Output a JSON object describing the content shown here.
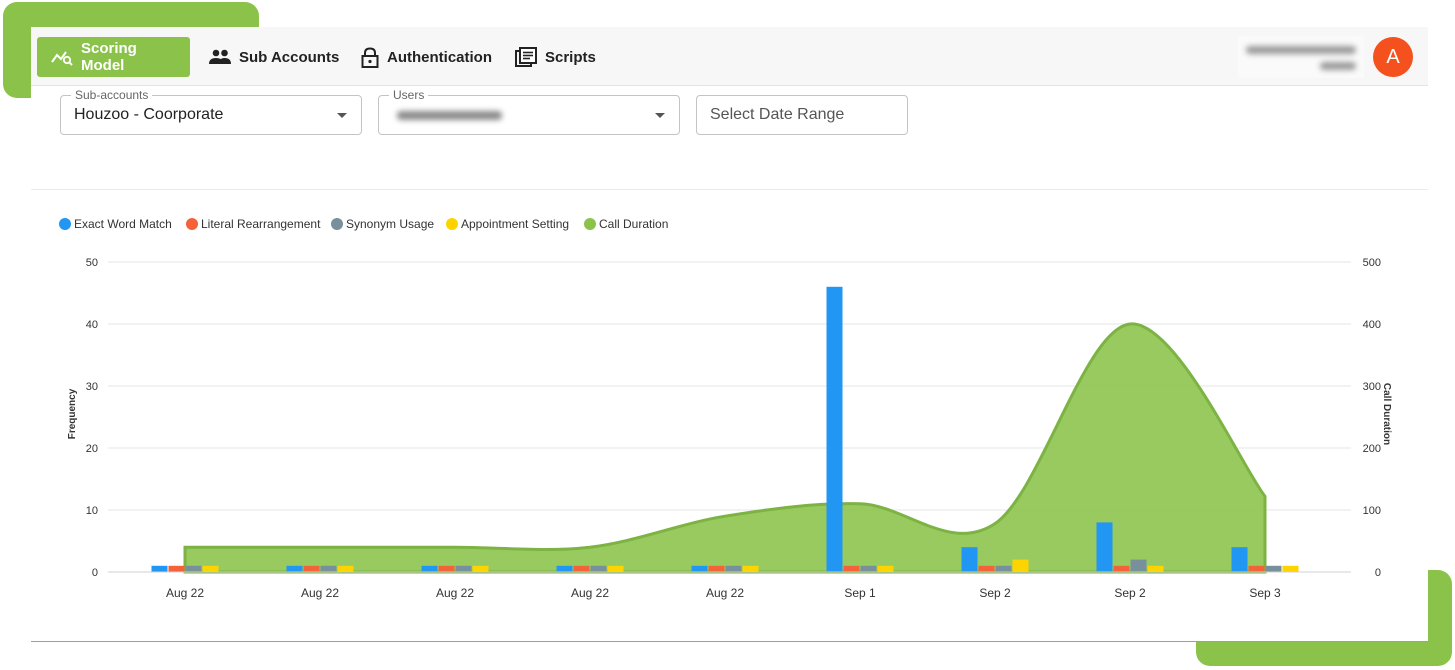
{
  "nav": {
    "tabs": [
      {
        "label": "Scoring Model",
        "icon": "chart-search-icon",
        "active": true
      },
      {
        "label": "Sub Accounts",
        "icon": "users-icon",
        "active": false
      },
      {
        "label": "Authentication",
        "icon": "lock-icon",
        "active": false
      },
      {
        "label": "Scripts",
        "icon": "script-icon",
        "active": false
      }
    ],
    "avatar_letter": "A"
  },
  "filters": {
    "subaccounts": {
      "label": "Sub-accounts",
      "value": "Houzoo - Coorporate"
    },
    "users": {
      "label": "Users"
    },
    "date_range": {
      "placeholder": "Select Date Range"
    }
  },
  "colors": {
    "accent": "#8bc34a",
    "avatar": "#f4511e",
    "exact": "#2196f3",
    "literal": "#f4623a",
    "synonym": "#78909c",
    "appointment": "#fdd400",
    "duration": "#8bc34a"
  },
  "chart_data": {
    "type": "bar",
    "categories": [
      "Aug 22",
      "Aug 22",
      "Aug 22",
      "Aug 22",
      "Aug 22",
      "Sep 1",
      "Sep 2",
      "Sep 2",
      "Sep 3"
    ],
    "series": [
      {
        "name": "Exact Word Match",
        "type": "bar",
        "axis": "left",
        "color": "#2196f3",
        "values": [
          1,
          1,
          1,
          1,
          1,
          46,
          4,
          8,
          4
        ]
      },
      {
        "name": "Literal Rearrangement",
        "type": "bar",
        "axis": "left",
        "color": "#f4623a",
        "values": [
          1,
          1,
          1,
          1,
          1,
          1,
          1,
          1,
          1
        ]
      },
      {
        "name": "Synonym Usage",
        "type": "bar",
        "axis": "left",
        "color": "#78909c",
        "values": [
          1,
          1,
          1,
          1,
          1,
          1,
          1,
          2,
          1
        ]
      },
      {
        "name": "Appointment Setting",
        "type": "bar",
        "axis": "left",
        "color": "#fdd400",
        "values": [
          1,
          1,
          1,
          1,
          1,
          1,
          2,
          1,
          1
        ]
      },
      {
        "name": "Call Duration",
        "type": "area",
        "axis": "right",
        "color": "#8bc34a",
        "values": [
          40,
          40,
          40,
          40,
          90,
          110,
          78,
          400,
          122
        ]
      }
    ],
    "ylabel": "Frequency",
    "y2label": "Call Duration",
    "ylim": [
      0,
      50
    ],
    "y2lim": [
      0,
      500
    ],
    "yticks": [
      0,
      10,
      20,
      30,
      40,
      50
    ],
    "y2ticks": [
      0,
      100,
      200,
      300,
      400,
      500
    ],
    "legend_position": "top-left",
    "grid": true
  }
}
